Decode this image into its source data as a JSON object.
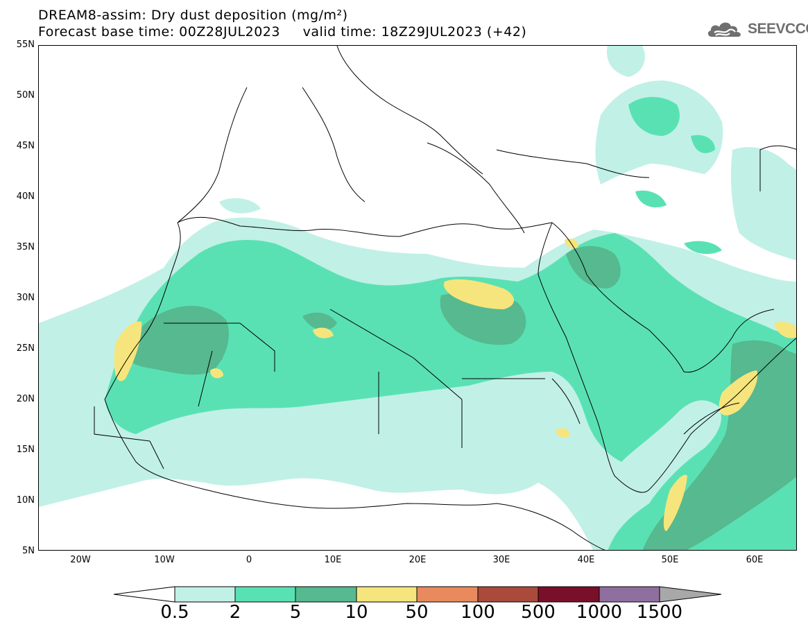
{
  "title": {
    "line1": "DREAM8-assim: Dry dust deposition (mg/m²)",
    "line2": "Forecast base time: 00Z28JUL2023     valid time: 18Z29JUL2023 (+42)"
  },
  "logo": {
    "text": "SEEVCCC",
    "icon": "cloud-icon",
    "color": "#6f6f6f"
  },
  "map": {
    "projection": "lat-lon",
    "lon_range": [
      -25,
      65
    ],
    "lat_range": [
      5,
      55
    ],
    "lat_ticks": [
      "55N",
      "50N",
      "45N",
      "40N",
      "35N",
      "30N",
      "25N",
      "20N",
      "15N",
      "10N",
      "5N"
    ],
    "lon_ticks": [
      "20W",
      "10W",
      "0",
      "10E",
      "20E",
      "30E",
      "40E",
      "50E",
      "60E"
    ],
    "lat_tick_values": [
      55,
      50,
      45,
      40,
      35,
      30,
      25,
      20,
      15,
      10,
      5
    ],
    "lon_tick_values": [
      -20,
      -10,
      0,
      10,
      20,
      30,
      40,
      50,
      60
    ],
    "field": "dry dust deposition",
    "units": "mg/m²"
  },
  "legend": {
    "labels": [
      "0.5",
      "2",
      "5",
      "10",
      "50",
      "100",
      "500",
      "1000",
      "1500"
    ],
    "colors": [
      "#c1f0e6",
      "#5ae1b3",
      "#56b98f",
      "#f6e57c",
      "#e88a5e",
      "#a94a3b",
      "#7a0f2a",
      "#8f6fa0",
      "#a8a8a8"
    ],
    "under_color": "#ffffff"
  },
  "colors": {
    "level1": "#c1f0e6",
    "level2": "#5ae1b3",
    "level3": "#56b98f",
    "level4": "#f6e57c"
  }
}
